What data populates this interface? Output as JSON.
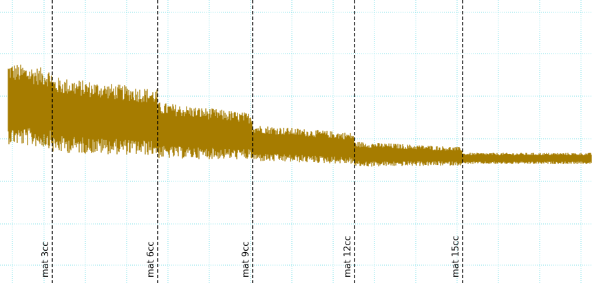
{
  "chart_data": {
    "type": "line",
    "title": "",
    "xlabel": "",
    "ylabel": "",
    "grid": true,
    "colors": {
      "signal": "#A67C00",
      "grid": "#7FE0E8",
      "marker": "#000000",
      "background": "#FFFFFF"
    },
    "markers": [
      {
        "label": "mat 3cc"
      },
      {
        "label": "mat 6cc"
      },
      {
        "label": "mat 9cc"
      },
      {
        "label": "mat 12cc"
      },
      {
        "label": "mat 15cc"
      }
    ],
    "envelope_description": "oscillating signal whose amplitude decays with each material increment",
    "envelope": [
      {
        "segment": "before mat 3cc",
        "upper": 0.78,
        "lower": 0.49
      },
      {
        "segment": "mat 3cc to mat 6cc",
        "upper": 0.73,
        "lower": 0.46
      },
      {
        "segment": "mat 6cc to mat 9cc",
        "upper": 0.64,
        "lower": 0.44
      },
      {
        "segment": "mat 9cc to mat 12cc",
        "upper": 0.56,
        "lower": 0.43
      },
      {
        "segment": "mat 12cc to mat 15cc",
        "upper": 0.5,
        "lower": 0.41
      },
      {
        "segment": "after mat 15cc",
        "upper": 0.46,
        "lower": 0.42
      }
    ]
  }
}
